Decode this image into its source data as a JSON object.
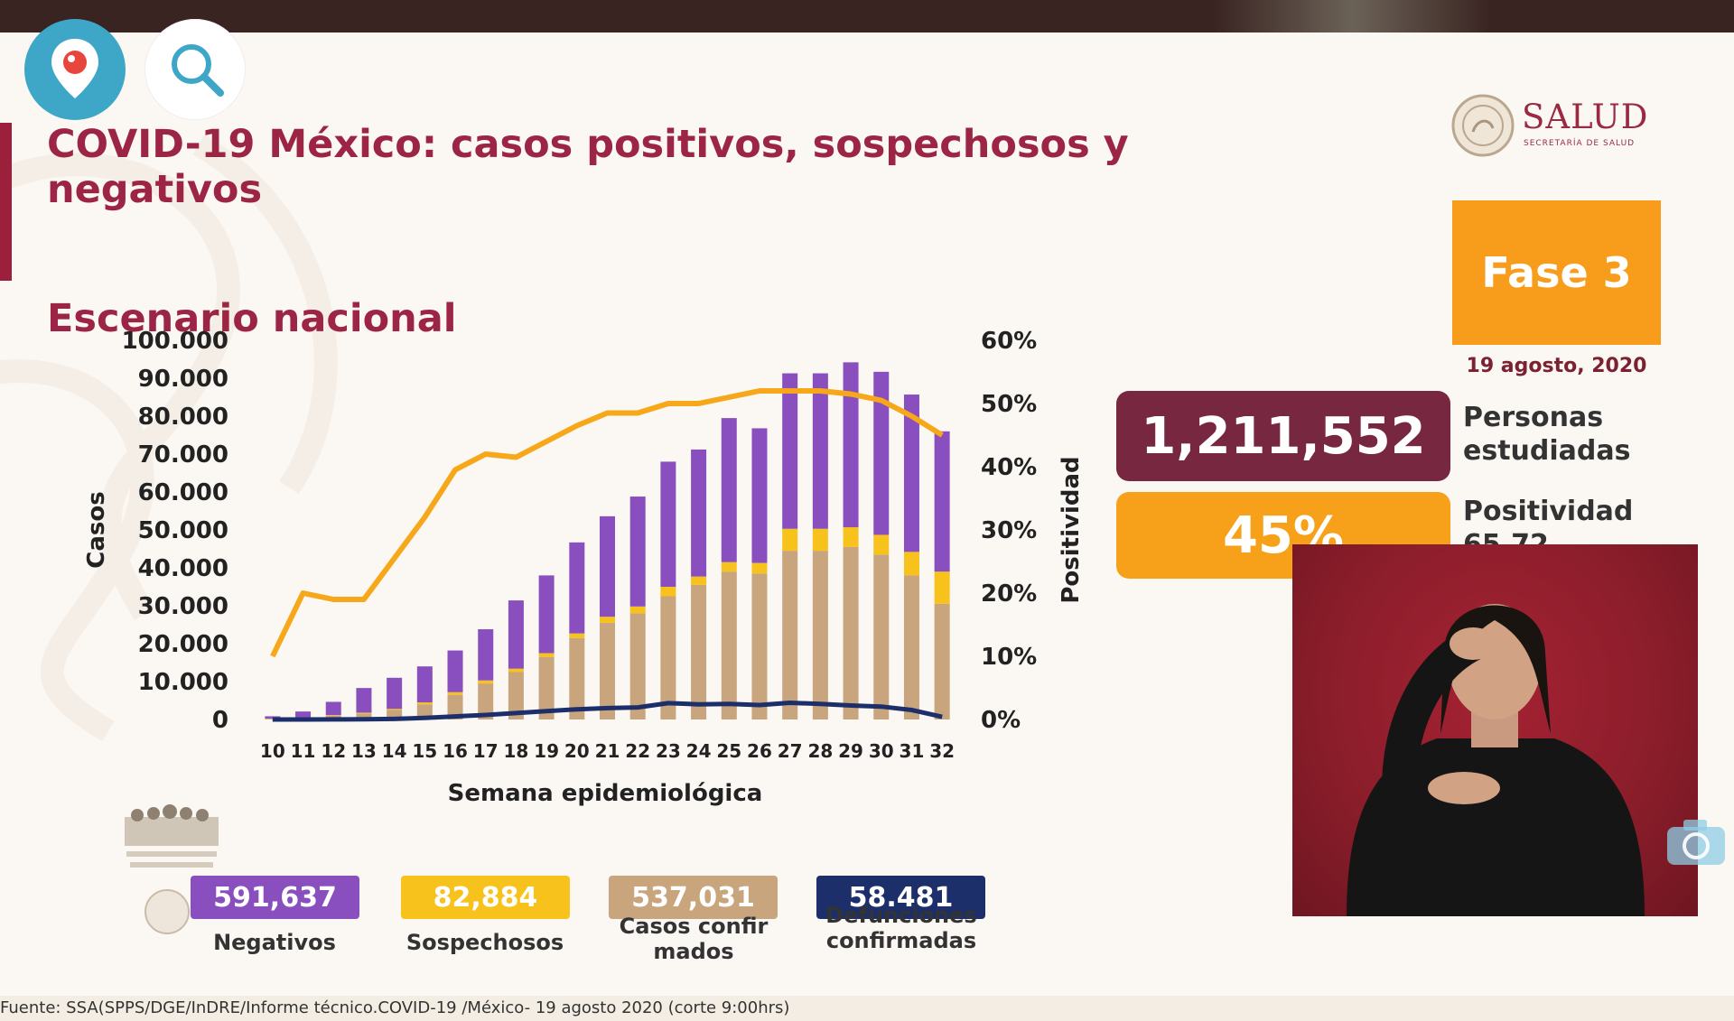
{
  "app": {
    "left_button_icon": "periscope-pin-icon",
    "search_button_icon": "search-icon",
    "camera_button_icon": "camera-icon"
  },
  "slide": {
    "title": "COVID-19 México: casos positivos, sospechosos y negativos",
    "subtitle": "Escenario nacional",
    "logo": {
      "name": "SALUD",
      "tagline": "SECRETARÍA DE SALUD"
    },
    "phase": "Fase 3",
    "date": "19 agosto, 2020",
    "stats": [
      {
        "value": "1,211,552",
        "label": "Personas estudiadas",
        "color": "#77273f"
      },
      {
        "value": "45%",
        "label": "Positividad",
        "partial_label": "65.72",
        "color": "#f7a11a"
      }
    ],
    "source": "Fuente: SSA(SPPS/DGE/InDRE/Informe técnico.COVID-19 /México- 19 agosto 2020 (corte 9:00hrs)"
  },
  "legend": [
    {
      "value": "591,637",
      "label": "Negativos",
      "color": "#8a4fbf"
    },
    {
      "value": "82,884",
      "label": "Sospechosos",
      "color": "#f8c21c"
    },
    {
      "value": "537,031",
      "label": "Casos confirmados",
      "color": "#c8a57c"
    },
    {
      "value": "58.481",
      "label": "Defunciones confirmadas",
      "color": "#1c2f6b"
    }
  ],
  "colors": {
    "negativos": "#8a4fbf",
    "sospechosos": "#f8c21c",
    "confirmados": "#c8a57c",
    "defunciones": "#1c2f6b",
    "positividad": "#f6a81a",
    "title": "#9c2445"
  },
  "chart_data": {
    "type": "bar",
    "stacked": true,
    "xlabel": "Semana epidemiológica",
    "ylabel": "Casos",
    "y2label": "Positividad",
    "ylim": [
      0,
      100000
    ],
    "y2lim": [
      0,
      60
    ],
    "yticks": [
      "0",
      "10.000",
      "20.000",
      "30.000",
      "40.000",
      "50.000",
      "60.000",
      "70.000",
      "80.000",
      "90.000",
      "100.000"
    ],
    "y2ticks": [
      "0%",
      "10%",
      "20%",
      "30%",
      "40%",
      "50%",
      "60%"
    ],
    "categories": [
      "10",
      "11",
      "12",
      "13",
      "14",
      "15",
      "16",
      "17",
      "18",
      "19",
      "20",
      "21",
      "22",
      "23",
      "24",
      "25",
      "26",
      "27",
      "28",
      "29",
      "30",
      "31",
      "32"
    ],
    "series": [
      {
        "name": "Casos confirmados",
        "kind": "bar",
        "values": [
          200,
          500,
          1000,
          1600,
          2500,
          4000,
          6500,
          9500,
          12500,
          16500,
          21500,
          25500,
          28000,
          32500,
          35500,
          39000,
          38500,
          44500,
          44500,
          45500,
          43500,
          38000,
          30500
        ]
      },
      {
        "name": "Sospechosos",
        "kind": "bar",
        "values": [
          50,
          100,
          150,
          200,
          300,
          500,
          700,
          800,
          900,
          1000,
          1200,
          1600,
          1800,
          2500,
          2200,
          2500,
          2800,
          5800,
          5800,
          5200,
          5200,
          6200,
          8500
        ]
      },
      {
        "name": "Negativos",
        "kind": "bar",
        "values": [
          600,
          1500,
          3500,
          6500,
          8200,
          9500,
          11000,
          13500,
          18000,
          20500,
          24000,
          26500,
          29000,
          33000,
          33500,
          38000,
          35500,
          41000,
          41000,
          43500,
          43000,
          41500,
          37000
        ]
      },
      {
        "name": "Defunciones confirmadas",
        "kind": "line",
        "values": [
          0,
          10,
          20,
          50,
          150,
          400,
          800,
          1200,
          1700,
          2200,
          2700,
          3000,
          3200,
          4300,
          4000,
          4100,
          3800,
          4400,
          4100,
          3700,
          3400,
          2500,
          700
        ]
      },
      {
        "name": "Positividad",
        "kind": "line",
        "axis": "y2",
        "values": [
          10,
          20,
          19,
          19,
          25.5,
          32,
          39.5,
          42,
          41.5,
          44,
          46.5,
          48.5,
          48.5,
          50,
          50,
          51,
          52,
          52,
          52,
          51.5,
          50.5,
          48,
          45
        ]
      }
    ]
  }
}
